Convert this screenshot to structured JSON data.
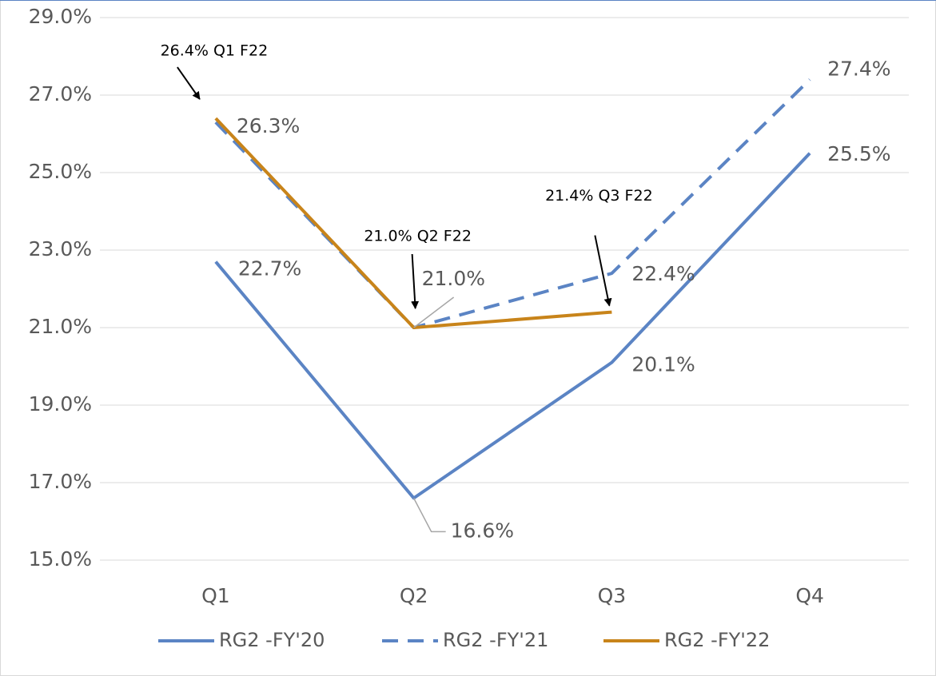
{
  "chart_data": {
    "type": "line",
    "categories": [
      "Q1",
      "Q2",
      "Q3",
      "Q4"
    ],
    "series": [
      {
        "name": "RG2 -FY'20",
        "color": "#5b84c4",
        "dash": false,
        "values": [
          22.7,
          16.6,
          20.1,
          25.5
        ],
        "value_labels": [
          "22.7%",
          "16.6%",
          "20.1%",
          "25.5%"
        ]
      },
      {
        "name": "RG2 -FY'21",
        "color": "#5b84c4",
        "dash": true,
        "values": [
          26.3,
          21.0,
          22.4,
          27.4
        ],
        "value_labels": [
          "26.3%",
          "21.0%",
          "22.4%",
          "27.4%"
        ]
      },
      {
        "name": "RG2 -FY'22",
        "color": "#c8841a",
        "dash": false,
        "values": [
          26.4,
          21.0,
          21.4,
          null
        ]
      }
    ],
    "annotations": [
      "26.4% Q1 F22",
      "21.0% Q2 F22",
      "21.4% Q3 F22"
    ],
    "ylim": [
      15,
      29
    ],
    "yticks": [
      {
        "value": 15,
        "label": "15.0%"
      },
      {
        "value": 17,
        "label": "17.0%"
      },
      {
        "value": 19,
        "label": "19.0%"
      },
      {
        "value": 21,
        "label": "21.0%"
      },
      {
        "value": 23,
        "label": "23.0%"
      },
      {
        "value": 25,
        "label": "25.0%"
      },
      {
        "value": 27,
        "label": "27.0%"
      },
      {
        "value": 29,
        "label": "29.0%"
      }
    ],
    "grid": true,
    "legend": "bottom"
  }
}
